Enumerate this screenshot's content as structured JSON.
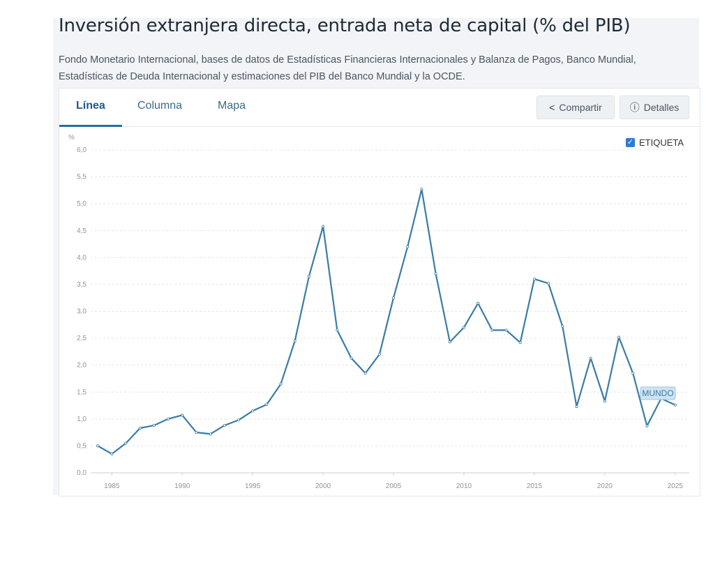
{
  "header": {
    "title": "Inversión extranjera directa, entrada neta de capital (% del PIB)",
    "source": "Fondo Monetario Internacional, bases de datos de Estadísticas Financieras Internacionales y Balanza de Pagos, Banco Mundial, Estadísticas de Deuda Internacional y estimaciones del PIB del Banco Mundial y la OCDE."
  },
  "tabs": [
    {
      "label": "Línea",
      "active": true
    },
    {
      "label": "Columna",
      "active": false
    },
    {
      "label": "Mapa",
      "active": false
    }
  ],
  "actions": {
    "share_label": "Compartir",
    "details_label": "Detalles"
  },
  "legend_toggle": {
    "label": "ETIQUETA",
    "checked": true
  },
  "colors": {
    "line": "#3a7ca5",
    "label_bg": "#cfe3f2",
    "accent": "#2a6d9a"
  },
  "chart_data": {
    "type": "line",
    "ylabel": "%",
    "ylim": [
      0,
      6
    ],
    "yticks": [
      "0,0",
      "0,5",
      "1,0",
      "1,5",
      "2,0",
      "2,5",
      "3,0",
      "3,5",
      "4,0",
      "4,5",
      "5,0",
      "5,5",
      "6,0"
    ],
    "xticks": [
      "1985",
      "1990",
      "1995",
      "2000",
      "2005",
      "2010",
      "2015",
      "2020",
      "2025"
    ],
    "grid": true,
    "series": [
      {
        "name": "MUNDO",
        "x": [
          1984,
          1985,
          1986,
          1987,
          1988,
          1989,
          1990,
          1991,
          1992,
          1993,
          1994,
          1995,
          1996,
          1997,
          1998,
          1999,
          2000,
          2001,
          2002,
          2003,
          2004,
          2005,
          2006,
          2007,
          2008,
          2009,
          2010,
          2011,
          2012,
          2013,
          2014,
          2015,
          2016,
          2017,
          2018,
          2019,
          2020,
          2021,
          2022,
          2023,
          2024,
          2025
        ],
        "values": [
          0.5,
          0.35,
          0.55,
          0.83,
          0.88,
          1.0,
          1.07,
          0.75,
          0.72,
          0.88,
          0.98,
          1.15,
          1.27,
          1.65,
          2.45,
          3.65,
          4.58,
          2.65,
          2.13,
          1.85,
          2.2,
          3.25,
          4.2,
          5.27,
          3.7,
          2.43,
          2.7,
          3.15,
          2.65,
          2.65,
          2.42,
          3.6,
          3.52,
          2.72,
          1.23,
          2.13,
          1.33,
          2.52,
          1.85,
          0.87,
          1.38,
          1.26
        ]
      }
    ]
  }
}
